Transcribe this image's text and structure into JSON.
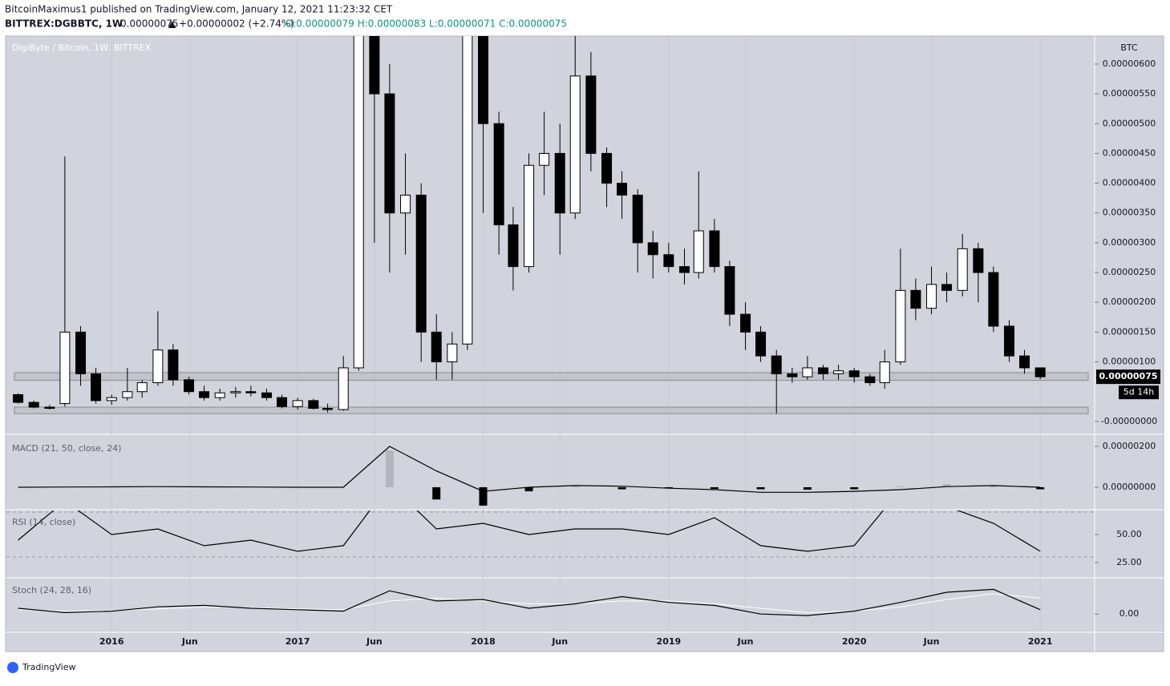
{
  "header": {
    "publisher": "BitcoinMaximus1 published on TradingView.com, January 12, 2021 11:23:32 CET",
    "symbol": "BITTREX:DGBBTC, 1W",
    "last": "0.00000075",
    "change": "▲ +0.00000002 (+2.74%)",
    "ohlc": "O:0.00000079 H:0.00000083 L:0.00000071 C:0.00000075"
  },
  "footer": {
    "brand": "TradingView"
  },
  "chart_data": [
    {
      "type": "candlestick",
      "title": "DigiByte / Bitcoin, 1W, BITTREX",
      "unit": "BTC",
      "x": [
        "2015-07",
        "2015-08",
        "2015-09",
        "2015-10",
        "2015-11",
        "2015-12",
        "2016-01",
        "2016-02",
        "2016-03",
        "2016-04",
        "2016-05",
        "2016-06",
        "2016-07",
        "2016-08",
        "2016-09",
        "2016-10",
        "2016-11",
        "2016-12",
        "2017-01",
        "2017-02",
        "2017-03",
        "2017-04",
        "2017-05",
        "2017-06",
        "2017-07",
        "2017-08",
        "2017-09",
        "2017-10",
        "2017-11",
        "2017-12",
        "2018-01",
        "2018-02",
        "2018-03",
        "2018-04",
        "2018-05",
        "2018-06",
        "2018-07",
        "2018-08",
        "2018-09",
        "2018-10",
        "2018-11",
        "2018-12",
        "2019-01",
        "2019-02",
        "2019-03",
        "2019-04",
        "2019-05",
        "2019-06",
        "2019-07",
        "2019-08",
        "2019-09",
        "2019-10",
        "2019-11",
        "2019-12",
        "2020-01",
        "2020-02",
        "2020-03",
        "2020-04",
        "2020-05",
        "2020-06",
        "2020-07",
        "2020-08",
        "2020-09",
        "2020-10",
        "2020-11",
        "2020-12",
        "2021-01"
      ],
      "open": [
        4.5e-07,
        3.2e-07,
        2.4e-07,
        3e-07,
        1.5e-06,
        8e-07,
        3.5e-07,
        4e-07,
        5e-07,
        6.5e-07,
        1.2e-06,
        7e-07,
        5e-07,
        4e-07,
        4.8e-07,
        5e-07,
        4.8e-07,
        4e-07,
        2.5e-07,
        3.5e-07,
        2.2e-07,
        2e-07,
        9e-07,
        7e-06,
        5.5e-06,
        3.5e-06,
        3.8e-06,
        1.5e-06,
        1e-06,
        1.3e-06,
        6.5e-06,
        5e-06,
        3.3e-06,
        2.6e-06,
        4.3e-06,
        4.5e-06,
        3.5e-06,
        5.8e-06,
        4.5e-06,
        4e-06,
        3.8e-06,
        3e-06,
        2.8e-06,
        2.6e-06,
        2.5e-06,
        3.2e-06,
        2.6e-06,
        1.8e-06,
        1.5e-06,
        1.1e-06,
        8e-07,
        7.5e-07,
        9e-07,
        8e-07,
        8.5e-07,
        7.5e-07,
        6.5e-07,
        1e-06,
        2.2e-06,
        1.9e-06,
        2.3e-06,
        2.2e-06,
        2.9e-06,
        2.5e-06,
        1.6e-06,
        1.1e-06,
        9e-07
      ],
      "high": [
        4.7e-07,
        3.5e-07,
        2.8e-07,
        4.45e-06,
        1.6e-06,
        9e-07,
        4.5e-07,
        9e-07,
        7e-07,
        1.85e-06,
        1.3e-06,
        7.5e-07,
        6e-07,
        5.5e-07,
        5.8e-07,
        6e-07,
        5.5e-07,
        4.5e-07,
        4e-07,
        3.8e-07,
        3e-07,
        1.1e-06,
        9e-06,
        7.5e-06,
        6e-06,
        4.5e-06,
        4e-06,
        1.8e-06,
        1.5e-06,
        7.5e-06,
        7e-06,
        5.2e-06,
        3.6e-06,
        4.5e-06,
        5.2e-06,
        5e-06,
        6.5e-06,
        6.2e-06,
        4.6e-06,
        4.2e-06,
        3.9e-06,
        3.2e-06,
        3e-06,
        2.9e-06,
        4.2e-06,
        3.4e-06,
        2.7e-06,
        2e-06,
        1.6e-06,
        1.2e-06,
        9e-07,
        1.1e-06,
        9.5e-07,
        9.5e-07,
        9e-07,
        8e-07,
        1.2e-06,
        2.9e-06,
        2.4e-06,
        2.6e-06,
        2.5e-06,
        3.15e-06,
        3e-06,
        2.6e-06,
        1.7e-06,
        1.2e-06,
        9e-07
      ],
      "low": [
        3e-07,
        2.2e-07,
        2e-07,
        2.5e-07,
        6e-07,
        3e-07,
        2.8e-07,
        3.5e-07,
        4e-07,
        6e-07,
        6e-07,
        4.5e-07,
        3.5e-07,
        3.5e-07,
        4e-07,
        4.2e-07,
        3.5e-07,
        2.2e-07,
        2e-07,
        2e-07,
        1.5e-07,
        1.8e-07,
        8.5e-07,
        3e-06,
        2.5e-06,
        2.8e-06,
        1e-06,
        7e-07,
        7e-07,
        1.2e-06,
        3.5e-06,
        2.8e-06,
        2.2e-06,
        2.5e-06,
        3.8e-06,
        2.8e-06,
        3.4e-06,
        4.2e-06,
        3.6e-06,
        3.4e-06,
        2.5e-06,
        2.4e-06,
        2.5e-06,
        2.3e-06,
        2.4e-06,
        2.5e-06,
        1.6e-06,
        1.2e-06,
        1e-06,
        1.3e-07,
        6.5e-07,
        7e-07,
        7e-07,
        7e-07,
        6.5e-07,
        6e-07,
        5.5e-07,
        9.5e-07,
        1.7e-06,
        1.8e-06,
        2e-06,
        2.1e-06,
        2e-06,
        1.5e-06,
        1e-06,
        8e-07,
        7.1e-07
      ],
      "close": [
        3.2e-07,
        2.4e-07,
        2.2e-07,
        1.5e-06,
        8e-07,
        3.5e-07,
        4e-07,
        5e-07,
        6.5e-07,
        1.2e-06,
        7e-07,
        5e-07,
        4e-07,
        4.8e-07,
        5e-07,
        4.8e-07,
        4e-07,
        2.5e-07,
        3.5e-07,
        2.2e-07,
        2e-07,
        9e-07,
        7e-06,
        5.5e-06,
        3.5e-06,
        3.8e-06,
        1.5e-06,
        1e-06,
        1.3e-06,
        6.5e-06,
        5e-06,
        3.3e-06,
        2.6e-06,
        4.3e-06,
        4.5e-06,
        3.5e-06,
        5.8e-06,
        4.5e-06,
        4e-06,
        3.8e-06,
        3e-06,
        2.8e-06,
        2.6e-06,
        2.5e-06,
        3.2e-06,
        2.6e-06,
        1.8e-06,
        1.5e-06,
        1.1e-06,
        8e-07,
        7.5e-07,
        9e-07,
        8e-07,
        8.5e-07,
        7.5e-07,
        6.5e-07,
        1e-06,
        2.2e-06,
        1.9e-06,
        2.3e-06,
        2.2e-06,
        2.9e-06,
        2.5e-06,
        1.6e-06,
        1.1e-06,
        9e-07,
        7.5e-07
      ],
      "up_color": "#ffffff",
      "down_color": "#000000",
      "xlim": [
        "2015-06-08",
        "2021-04-18"
      ],
      "xticks": [
        {
          "value": "2016-01-01",
          "label": "2016"
        },
        {
          "value": "2016-06-03",
          "label": "Jun"
        },
        {
          "value": "2017-01-01",
          "label": "2017"
        },
        {
          "value": "2017-06-01",
          "label": "Jun"
        },
        {
          "value": "2018-01-01",
          "label": "2018"
        },
        {
          "value": "2018-06-01",
          "label": "Jun"
        },
        {
          "value": "2019-01-01",
          "label": "2019"
        },
        {
          "value": "2019-06-01",
          "label": "Jun"
        },
        {
          "value": "2020-01-01",
          "label": "2020"
        },
        {
          "value": "2020-06-01",
          "label": "Jun"
        },
        {
          "value": "2021-01-01",
          "label": "2021"
        }
      ],
      "ylim": [
        -1.9e-07,
        6.47e-06
      ],
      "yticks": [
        {
          "value": 6e-06,
          "label": "0.00000600"
        },
        {
          "value": 5.5e-06,
          "label": "0.00000550"
        },
        {
          "value": 5e-06,
          "label": "0.00000500"
        },
        {
          "value": 4.5e-06,
          "label": "0.00000450"
        },
        {
          "value": 4e-06,
          "label": "0.00000400"
        },
        {
          "value": 3.5e-06,
          "label": "0.00000350"
        },
        {
          "value": 3e-06,
          "label": "0.00000300"
        },
        {
          "value": 2.5e-06,
          "label": "0.00000250"
        },
        {
          "value": 2e-06,
          "label": "0.00000200"
        },
        {
          "value": 1.5e-06,
          "label": "0.00000150"
        },
        {
          "value": 1e-06,
          "label": "0.00000100"
        },
        {
          "value": 0,
          "label": "-0.00000000"
        }
      ],
      "zones": [
        [
          6.9e-07,
          8.2e-07
        ],
        [
          1.3e-07,
          2.4e-07
        ]
      ],
      "last_price": {
        "value": 7.5e-07,
        "label": "0.00000075"
      },
      "countdown": "5d 14h"
    },
    {
      "type": "macd",
      "title": "MACD (21, 50, close, 24)",
      "x": [
        "2015-07",
        "2015-10",
        "2016-01",
        "2016-04",
        "2016-07",
        "2016-10",
        "2017-01",
        "2017-04",
        "2017-07",
        "2017-10",
        "2018-01",
        "2018-04",
        "2018-07",
        "2018-10",
        "2019-01",
        "2019-04",
        "2019-07",
        "2019-10",
        "2020-01",
        "2020-04",
        "2020-07",
        "2020-10",
        "2021-01"
      ],
      "values": [
        0,
        1e-08,
        2e-08,
        3e-08,
        2e-08,
        1e-08,
        0,
        0,
        2e-06,
        8e-07,
        -2e-07,
        0,
        8e-08,
        5e-08,
        -5e-08,
        -1.2e-07,
        -2.5e-07,
        -2.5e-07,
        -2e-07,
        -1.2e-07,
        3e-08,
        8e-08,
        0
      ],
      "histogram": [
        0,
        0,
        0,
        0,
        0,
        0,
        0,
        0,
        1.8e-06,
        -6e-07,
        -9e-07,
        -2e-07,
        8e-08,
        -1e-07,
        -5e-08,
        -8e-08,
        -1e-07,
        -1.2e-07,
        -1e-07,
        5e-08,
        1.5e-07,
        8e-08,
        -1e-07
      ],
      "color": "#000000",
      "up_color": "#b2b5be",
      "down_color": "#000000",
      "ylim": [
        -1.06e-06,
        2.47e-06
      ],
      "yticks": [
        {
          "value": 2e-06,
          "label": "0.00000200"
        },
        {
          "value": 0,
          "label": "0.00000000"
        }
      ]
    },
    {
      "type": "line",
      "title": "RSI (14, close)",
      "x": [
        "2015-07",
        "2015-10",
        "2016-01",
        "2016-04",
        "2016-07",
        "2016-10",
        "2017-01",
        "2017-04",
        "2017-07",
        "2017-10",
        "2018-01",
        "2018-04",
        "2018-07",
        "2018-10",
        "2019-01",
        "2019-04",
        "2019-07",
        "2019-10",
        "2020-01",
        "2020-04",
        "2020-07",
        "2020-10",
        "2021-01"
      ],
      "values": [
        45,
        80,
        50,
        55,
        40,
        45,
        35,
        40,
        95,
        55,
        60,
        50,
        55,
        55,
        50,
        65,
        40,
        35,
        40,
        90,
        75,
        60,
        35
      ],
      "color": "#000000",
      "ylim": [
        12.1,
        71.4
      ],
      "yticks": [
        {
          "value": 50,
          "label": "50.00"
        },
        {
          "value": 25,
          "label": "25.00"
        }
      ],
      "bands": [
        70,
        30
      ]
    },
    {
      "type": "stoch",
      "title": "Stoch (24, 28, 16)",
      "x": [
        "2015-07",
        "2015-10",
        "2016-01",
        "2016-04",
        "2016-07",
        "2016-10",
        "2017-01",
        "2017-04",
        "2017-07",
        "2017-10",
        "2018-01",
        "2018-04",
        "2018-07",
        "2018-10",
        "2019-01",
        "2019-04",
        "2019-07",
        "2019-10",
        "2020-01",
        "2020-04",
        "2020-07",
        "2020-10",
        "2021-01"
      ],
      "k": [
        20,
        5,
        10,
        25,
        30,
        20,
        15,
        10,
        80,
        45,
        50,
        20,
        35,
        60,
        40,
        30,
        0,
        -5,
        10,
        40,
        75,
        85,
        15
      ],
      "d": [
        15,
        10,
        12,
        18,
        25,
        22,
        18,
        15,
        45,
        55,
        45,
        35,
        35,
        45,
        45,
        35,
        20,
        5,
        10,
        25,
        50,
        70,
        55
      ],
      "k_color": "#000000",
      "d_color": "#ffffff",
      "ylim": [
        -60,
        122
      ],
      "yticks": [
        {
          "value": 0,
          "label": "0.00"
        }
      ]
    }
  ]
}
